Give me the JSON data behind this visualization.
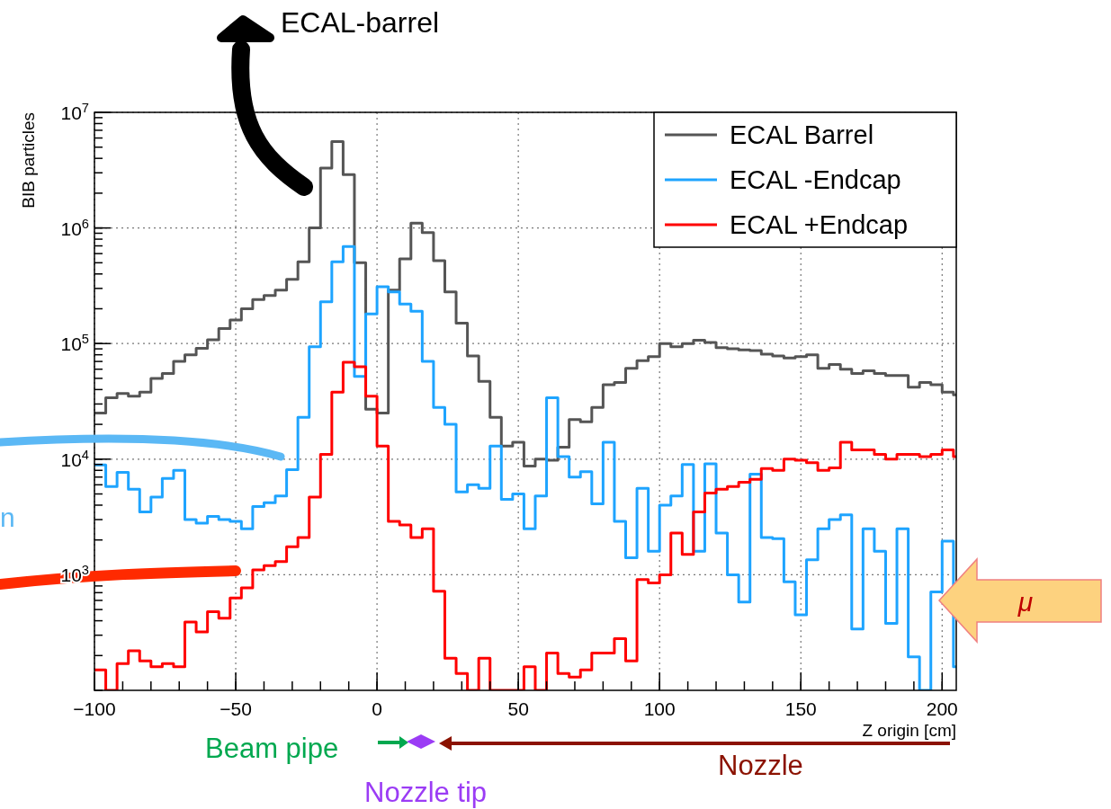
{
  "chart_data": {
    "type": "histogram",
    "xlabel": "Z origin [cm]",
    "ylabel": "BIB particles",
    "log": "y",
    "grid": true,
    "legend": "top right",
    "bins": [
      -100,
      -96,
      -92,
      -88,
      -84,
      -80,
      -76,
      -72,
      -68,
      -64,
      -60,
      -56,
      -52,
      -48,
      -44,
      -40,
      -36,
      -32,
      -28,
      -24,
      -20,
      -16,
      -12,
      -8,
      -4,
      0,
      4,
      8,
      12,
      16,
      20,
      24,
      28,
      32,
      36,
      40,
      44,
      48,
      52,
      56,
      60,
      64,
      68,
      72,
      76,
      80,
      84,
      88,
      92,
      96,
      100,
      104,
      108,
      112,
      116,
      120,
      124,
      128,
      132,
      136,
      140,
      144,
      148,
      152,
      156,
      160,
      164,
      168,
      172,
      176,
      180,
      184,
      188,
      192,
      196,
      200,
      204,
      205
    ],
    "xlim": [
      -100,
      205
    ],
    "ylim": [
      100,
      10000000
    ],
    "xticks": [
      {
        "value": -100,
        "label": "−100"
      },
      {
        "value": -50,
        "label": "−50"
      },
      0,
      50,
      100,
      150,
      200
    ],
    "yticks": [
      {
        "value": 1000,
        "label": "10$^{3}$"
      },
      {
        "value": 10000,
        "label": "10$^{4}$"
      },
      {
        "value": 100000,
        "label": "10$^{5}$"
      },
      {
        "value": 1000000,
        "label": "10$^{6}$"
      },
      {
        "value": 10000000,
        "label": "10$^{7}$"
      }
    ],
    "series": [
      {
        "name": "ECAL Barrel",
        "color": "#555555",
        "values": [
          25000,
          34000,
          37000,
          35000,
          38000,
          50000,
          55000,
          70000,
          80000,
          91000,
          108000,
          135000,
          160000,
          200000,
          240000,
          260000,
          290000,
          360000,
          510000,
          1000000,
          3300000,
          5600000,
          2900000,
          500000,
          27000,
          25000,
          290000,
          540000,
          1100000,
          910000,
          520000,
          280000,
          150000,
          78000,
          47000,
          23000,
          13000,
          14000,
          8700,
          10000,
          9800,
          12700,
          22000,
          21000,
          28000,
          44000,
          46000,
          61000,
          71000,
          77000,
          100000,
          94000,
          100000,
          107000,
          102000,
          92000,
          90000,
          88000,
          87000,
          81000,
          78000,
          75000,
          77000,
          80000,
          61000,
          66000,
          60000,
          55000,
          58000,
          55000,
          53000,
          53000,
          42000,
          46000,
          44000,
          38000,
          36000
        ]
      },
      {
        "name": "ECAL -Endcap",
        "color": "#1ea4ff",
        "values": [
          8900,
          5800,
          7700,
          5500,
          3500,
          4700,
          6800,
          8000,
          3000,
          2800,
          3200,
          3000,
          2900,
          2500,
          3900,
          4200,
          4800,
          8100,
          23000,
          94000,
          230000,
          510000,
          690000,
          52000,
          180000,
          310000,
          280000,
          220000,
          190000,
          70000,
          28000,
          20000,
          5200,
          6000,
          5600,
          13000,
          4500,
          5000,
          2500,
          4800,
          34000,
          10500,
          7000,
          7800,
          4100,
          14000,
          2900,
          1400,
          5600,
          1600,
          4000,
          4800,
          9000,
          1600,
          9100,
          2300,
          1000,
          580,
          7400,
          2100,
          2050,
          870,
          450,
          1350,
          2500,
          3000,
          3300,
          340,
          2500,
          1600,
          380,
          2500,
          195,
          100,
          710,
          1950,
          160
        ]
      },
      {
        "name": "ECAL +Endcap",
        "color": "#ff0000",
        "values": [
          150,
          100,
          170,
          220,
          180,
          160,
          170,
          160,
          390,
          320,
          480,
          420,
          630,
          770,
          1100,
          1200,
          1300,
          1750,
          2100,
          4700,
          11000,
          38000,
          69000,
          63000,
          35000,
          13000,
          2900,
          2700,
          2100,
          2500,
          720,
          190,
          140,
          100,
          190,
          100,
          100,
          100,
          160,
          100,
          210,
          140,
          130,
          150,
          210,
          210,
          280,
          180,
          910,
          850,
          1000,
          2300,
          1500,
          3500,
          5100,
          5500,
          5800,
          6300,
          6700,
          8300,
          8000,
          10000,
          9800,
          9300,
          8000,
          8400,
          14000,
          12000,
          12000,
          11000,
          10000,
          11000,
          11000,
          10500,
          11000,
          12000,
          10500
        ]
      }
    ],
    "annotations": [
      "ECAL-barrel",
      "μ",
      "Beam pipe",
      "Nozzle tip",
      "Nozzle",
      "n"
    ]
  }
}
